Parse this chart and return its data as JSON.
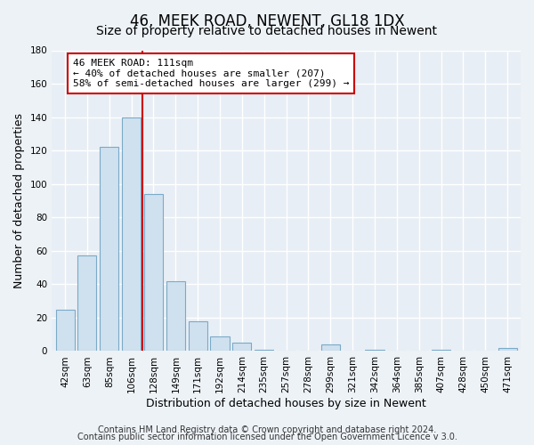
{
  "title": "46, MEEK ROAD, NEWENT, GL18 1DX",
  "subtitle": "Size of property relative to detached houses in Newent",
  "xlabel": "Distribution of detached houses by size in Newent",
  "ylabel": "Number of detached properties",
  "bar_labels": [
    "42sqm",
    "63sqm",
    "85sqm",
    "106sqm",
    "128sqm",
    "149sqm",
    "171sqm",
    "192sqm",
    "214sqm",
    "235sqm",
    "257sqm",
    "278sqm",
    "299sqm",
    "321sqm",
    "342sqm",
    "364sqm",
    "385sqm",
    "407sqm",
    "428sqm",
    "450sqm",
    "471sqm"
  ],
  "bar_values": [
    25,
    57,
    122,
    140,
    94,
    42,
    18,
    9,
    5,
    1,
    0,
    0,
    4,
    0,
    1,
    0,
    0,
    1,
    0,
    0,
    2
  ],
  "bar_color": "#cfe0ef",
  "bar_edge_color": "#7aaac8",
  "vline_x_idx": 4,
  "vline_color": "#cc0000",
  "annotation_title": "46 MEEK ROAD: 111sqm",
  "annotation_line1": "← 40% of detached houses are smaller (207)",
  "annotation_line2": "58% of semi-detached houses are larger (299) →",
  "annotation_box_facecolor": "#ffffff",
  "annotation_box_edgecolor": "#cc0000",
  "ylim": [
    0,
    180
  ],
  "yticks": [
    0,
    20,
    40,
    60,
    80,
    100,
    120,
    140,
    160,
    180
  ],
  "footer1": "Contains HM Land Registry data © Crown copyright and database right 2024.",
  "footer2": "Contains public sector information licensed under the Open Government Licence v 3.0.",
  "bg_color": "#edf2f7",
  "plot_bg_color": "#e8eef5",
  "grid_color": "#ffffff",
  "title_fontsize": 12,
  "subtitle_fontsize": 10,
  "axis_label_fontsize": 9,
  "tick_fontsize": 7.5,
  "footer_fontsize": 7
}
